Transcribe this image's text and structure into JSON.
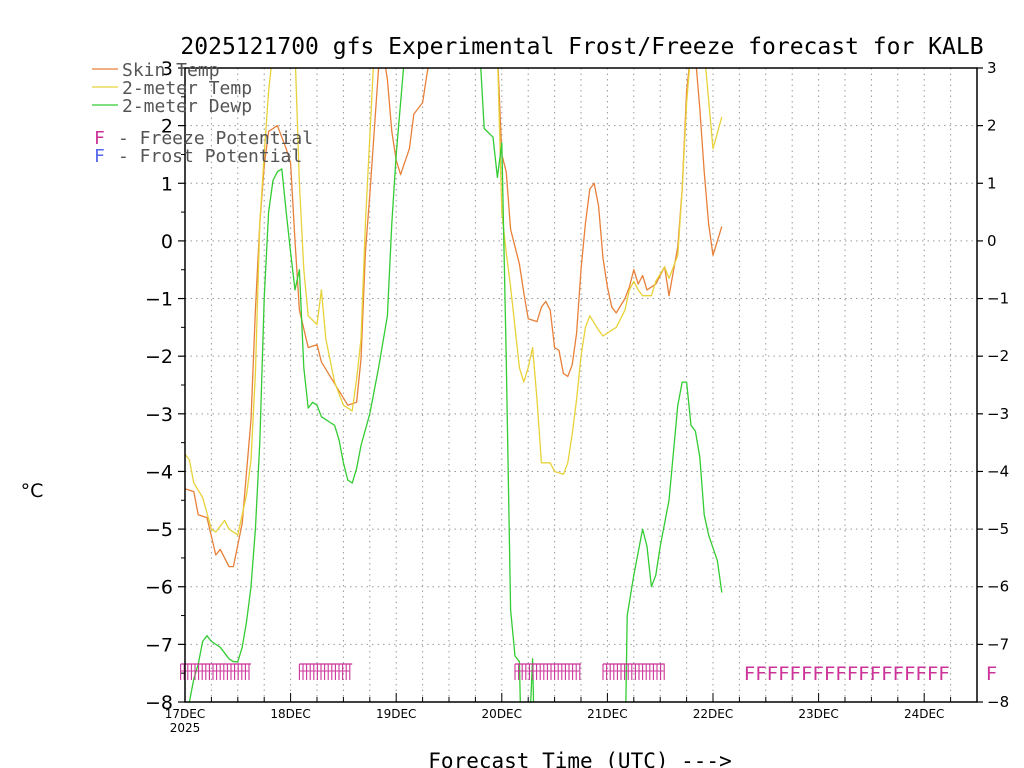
{
  "chart_data": {
    "type": "line",
    "title": "2025121700 gfs Experimental Frost/Freeze forecast for KALB",
    "xlabel": "Forecast Time (UTC) --->",
    "ylabel": "°C",
    "ylim": [
      -8,
      3
    ],
    "xlim_hours": [
      0,
      180
    ],
    "y_ticks": [
      -8,
      -7,
      -6,
      -5,
      -4,
      -3,
      -2,
      -1,
      0,
      1,
      2,
      3
    ],
    "x_ticks": [
      {
        "hour": 0,
        "label": "17DEC",
        "sublabel": "2025"
      },
      {
        "hour": 24,
        "label": "18DEC"
      },
      {
        "hour": 48,
        "label": "19DEC"
      },
      {
        "hour": 72,
        "label": "20DEC"
      },
      {
        "hour": 96,
        "label": "21DEC"
      },
      {
        "hour": 120,
        "label": "22DEC"
      },
      {
        "hour": 144,
        "label": "23DEC"
      },
      {
        "hour": 168,
        "label": "24DEC"
      }
    ],
    "grid": true,
    "legend": {
      "series_labels": [
        "Skin Temp",
        "2-meter Temp",
        "2-meter Dewp"
      ],
      "symbol_rows": [
        {
          "symbol": "F",
          "text": "- Freeze Potential",
          "color": "#cc3399"
        },
        {
          "symbol": "F",
          "text": "- Frost Potential",
          "color": "#5566ee"
        }
      ]
    },
    "series": [
      {
        "name": "Skin Temp",
        "color": "#e8803a",
        "points": [
          [
            0,
            -4.3
          ],
          [
            2,
            -4.35
          ],
          [
            3,
            -4.75
          ],
          [
            5,
            -4.8
          ],
          [
            7,
            -5.45
          ],
          [
            8,
            -5.35
          ],
          [
            10,
            -5.65
          ],
          [
            11,
            -5.65
          ],
          [
            13,
            -4.9
          ],
          [
            15,
            -3.1
          ],
          [
            16,
            -1.2
          ],
          [
            17,
            0.3
          ],
          [
            18,
            1.3
          ],
          [
            19,
            1.9
          ],
          [
            21,
            2.0
          ],
          [
            23,
            1.6
          ],
          [
            24,
            1.35
          ],
          [
            25,
            0.0
          ],
          [
            26,
            -1.2
          ],
          [
            28,
            -1.85
          ],
          [
            30,
            -1.8
          ],
          [
            31,
            -2.1
          ],
          [
            33,
            -2.35
          ],
          [
            35,
            -2.6
          ],
          [
            37,
            -2.85
          ],
          [
            39,
            -2.8
          ],
          [
            40,
            -2.05
          ],
          [
            41,
            -0.2
          ],
          [
            42,
            0.8
          ],
          [
            44,
            3.0
          ],
          [
            45,
            3.3
          ],
          [
            46,
            2.8
          ],
          [
            47,
            1.9
          ],
          [
            48,
            1.4
          ],
          [
            49,
            1.15
          ],
          [
            51,
            1.6
          ],
          [
            52,
            2.2
          ],
          [
            54,
            2.4
          ],
          [
            55,
            2.9
          ],
          [
            56,
            3.3
          ],
          [
            66,
            3.3
          ],
          [
            71,
            3.3
          ],
          [
            72,
            1.5
          ],
          [
            73,
            1.2
          ],
          [
            74,
            0.2
          ],
          [
            75,
            -0.1
          ],
          [
            76,
            -0.4
          ],
          [
            77,
            -0.9
          ],
          [
            78,
            -1.35
          ],
          [
            80,
            -1.4
          ],
          [
            81,
            -1.15
          ],
          [
            82,
            -1.05
          ],
          [
            83,
            -1.2
          ],
          [
            84,
            -1.85
          ],
          [
            85,
            -1.9
          ],
          [
            86,
            -2.3
          ],
          [
            87,
            -2.35
          ],
          [
            88,
            -2.15
          ],
          [
            89,
            -1.6
          ],
          [
            90,
            -0.5
          ],
          [
            91,
            0.3
          ],
          [
            92,
            0.9
          ],
          [
            93,
            1.0
          ],
          [
            94,
            0.6
          ],
          [
            95,
            -0.3
          ],
          [
            96,
            -0.8
          ],
          [
            97,
            -1.15
          ],
          [
            98,
            -1.25
          ],
          [
            100,
            -1.0
          ],
          [
            101,
            -0.8
          ],
          [
            102,
            -0.5
          ],
          [
            103,
            -0.75
          ],
          [
            104,
            -0.6
          ],
          [
            105,
            -0.85
          ],
          [
            107,
            -0.75
          ],
          [
            109,
            -0.45
          ],
          [
            110,
            -0.95
          ],
          [
            112,
            -0.1
          ],
          [
            113,
            0.9
          ],
          [
            114,
            2.6
          ],
          [
            115,
            3.3
          ],
          [
            116,
            3.2
          ],
          [
            117,
            2.3
          ],
          [
            118,
            1.2
          ],
          [
            119,
            0.3
          ],
          [
            120,
            -0.25
          ],
          [
            122,
            0.25
          ]
        ]
      },
      {
        "name": "2-meter Temp",
        "color": "#e8d23a",
        "points": [
          [
            0,
            -3.7
          ],
          [
            1,
            -3.8
          ],
          [
            2,
            -4.2
          ],
          [
            4,
            -4.45
          ],
          [
            6,
            -5.0
          ],
          [
            7,
            -5.05
          ],
          [
            9,
            -4.85
          ],
          [
            10,
            -5.0
          ],
          [
            12,
            -5.1
          ],
          [
            13,
            -4.75
          ],
          [
            14,
            -4.4
          ],
          [
            15,
            -3.8
          ],
          [
            16,
            -2.3
          ],
          [
            17,
            0.3
          ],
          [
            18,
            1.5
          ],
          [
            19,
            2.6
          ],
          [
            20,
            3.3
          ],
          [
            25,
            3.3
          ],
          [
            26,
            1.0
          ],
          [
            27,
            -0.5
          ],
          [
            28,
            -1.3
          ],
          [
            30,
            -1.45
          ],
          [
            31,
            -0.85
          ],
          [
            32,
            -1.7
          ],
          [
            34,
            -2.45
          ],
          [
            36,
            -2.85
          ],
          [
            37,
            -2.9
          ],
          [
            38,
            -2.95
          ],
          [
            39,
            -2.4
          ],
          [
            40,
            -1.7
          ],
          [
            41,
            0.3
          ],
          [
            43,
            3.3
          ],
          [
            52,
            3.3
          ],
          [
            71,
            3.3
          ],
          [
            72,
            0.5
          ],
          [
            73,
            -0.2
          ],
          [
            74,
            -0.8
          ],
          [
            75,
            -1.5
          ],
          [
            76,
            -2.2
          ],
          [
            77,
            -2.45
          ],
          [
            78,
            -2.2
          ],
          [
            79,
            -1.85
          ],
          [
            80,
            -2.75
          ],
          [
            81,
            -3.85
          ],
          [
            83,
            -3.85
          ],
          [
            84,
            -4.0
          ],
          [
            86,
            -4.05
          ],
          [
            87,
            -3.85
          ],
          [
            88,
            -3.35
          ],
          [
            89,
            -2.75
          ],
          [
            90,
            -2.0
          ],
          [
            91,
            -1.5
          ],
          [
            92,
            -1.3
          ],
          [
            94,
            -1.55
          ],
          [
            95,
            -1.65
          ],
          [
            97,
            -1.55
          ],
          [
            98,
            -1.5
          ],
          [
            100,
            -1.2
          ],
          [
            101,
            -0.85
          ],
          [
            102,
            -0.7
          ],
          [
            103,
            -0.85
          ],
          [
            104,
            -0.95
          ],
          [
            106,
            -0.95
          ],
          [
            107,
            -0.7
          ],
          [
            109,
            -0.45
          ],
          [
            110,
            -0.65
          ],
          [
            112,
            -0.25
          ],
          [
            113,
            0.9
          ],
          [
            114,
            2.4
          ],
          [
            115,
            3.3
          ],
          [
            118,
            3.3
          ],
          [
            120,
            1.6
          ],
          [
            122,
            2.15
          ]
        ]
      },
      {
        "name": "2-meter Dewp",
        "color": "#33cc33",
        "points": [
          [
            0,
            -8.4
          ],
          [
            2,
            -7.6
          ],
          [
            3,
            -7.35
          ],
          [
            4,
            -6.95
          ],
          [
            5,
            -6.85
          ],
          [
            6,
            -6.95
          ],
          [
            8,
            -7.05
          ],
          [
            10,
            -7.25
          ],
          [
            11,
            -7.3
          ],
          [
            12,
            -7.3
          ],
          [
            13,
            -7.05
          ],
          [
            14,
            -6.6
          ],
          [
            15,
            -6.0
          ],
          [
            16,
            -5.0
          ],
          [
            17,
            -3.5
          ],
          [
            18,
            -1.0
          ],
          [
            19,
            0.5
          ],
          [
            20,
            1.05
          ],
          [
            21,
            1.2
          ],
          [
            22,
            1.25
          ],
          [
            23,
            0.5
          ],
          [
            24,
            -0.2
          ],
          [
            25,
            -0.85
          ],
          [
            26,
            -0.5
          ],
          [
            27,
            -2.2
          ],
          [
            28,
            -2.9
          ],
          [
            29,
            -2.8
          ],
          [
            30,
            -2.85
          ],
          [
            31,
            -3.05
          ],
          [
            32,
            -3.1
          ],
          [
            33,
            -3.15
          ],
          [
            34,
            -3.2
          ],
          [
            35,
            -3.45
          ],
          [
            36,
            -3.85
          ],
          [
            37,
            -4.15
          ],
          [
            38,
            -4.2
          ],
          [
            39,
            -3.95
          ],
          [
            40,
            -3.55
          ],
          [
            42,
            -3.0
          ],
          [
            44,
            -2.2
          ],
          [
            46,
            -1.3
          ],
          [
            47,
            0.3
          ],
          [
            48,
            1.5
          ],
          [
            50,
            3.3
          ],
          [
            67,
            3.3
          ],
          [
            68,
            1.95
          ],
          [
            70,
            1.8
          ],
          [
            71,
            1.1
          ],
          [
            72,
            1.7
          ],
          [
            73,
            -2.0
          ],
          [
            74,
            -6.4
          ],
          [
            75,
            -7.2
          ],
          [
            76,
            -7.3
          ],
          [
            76.5,
            -9.0
          ],
          [
            78,
            -9.0
          ],
          [
            79,
            -7.25
          ],
          [
            79.5,
            -9.0
          ],
          [
            100,
            -9.0
          ],
          [
            100.5,
            -6.5
          ],
          [
            102,
            -5.8
          ],
          [
            104,
            -5.0
          ],
          [
            105,
            -5.3
          ],
          [
            106,
            -6.0
          ],
          [
            107,
            -5.8
          ],
          [
            108,
            -5.3
          ],
          [
            110,
            -4.5
          ],
          [
            112,
            -2.85
          ],
          [
            113,
            -2.45
          ],
          [
            114,
            -2.45
          ],
          [
            115,
            -3.2
          ],
          [
            116,
            -3.3
          ],
          [
            117,
            -3.75
          ],
          [
            118,
            -4.75
          ],
          [
            119,
            -5.1
          ],
          [
            121,
            -5.55
          ],
          [
            122,
            -6.1
          ]
        ]
      }
    ],
    "freeze_runs": [
      [
        -1,
        15
      ],
      [
        26,
        38
      ],
      [
        75,
        90
      ],
      [
        95,
        109
      ]
    ],
    "freeze_rows": [
      {
        "text": "FFFFFFFFFFFFFFFFFF",
        "start_hour": 127
      },
      {
        "text": "F",
        "start_hour": 182
      }
    ]
  }
}
